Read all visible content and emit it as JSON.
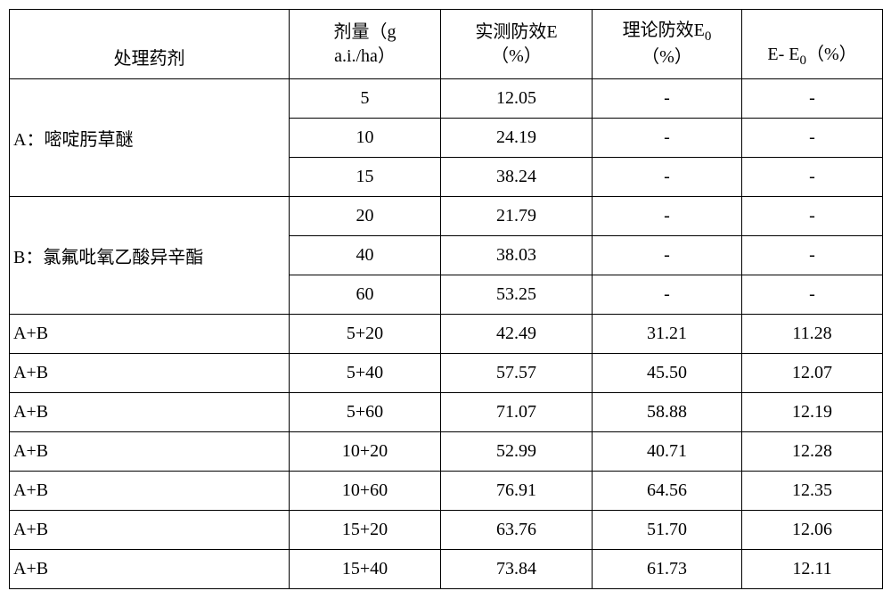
{
  "headers": {
    "agent": "处理药剂",
    "dose_l1": "剂量（g",
    "dose_l2": "a.i./ha）",
    "e_l1": "实测防效E",
    "e_l2": "（%）",
    "e0_l1": "理论防效E",
    "e0_sub": "0",
    "e0_l2": "（%）",
    "diff_pre": "E- E",
    "diff_sub": "0",
    "diff_post": "（%）"
  },
  "agents": {
    "A": "A：嘧啶肟草醚",
    "B": "B：氯氟吡氧乙酸异辛酯"
  },
  "rows": {
    "a1": {
      "dose": "5",
      "e": "12.05",
      "e0": "-",
      "d": "-"
    },
    "a2": {
      "dose": "10",
      "e": "24.19",
      "e0": "-",
      "d": "-"
    },
    "a3": {
      "dose": "15",
      "e": "38.24",
      "e0": "-",
      "d": "-"
    },
    "b1": {
      "dose": "20",
      "e": "21.79",
      "e0": "-",
      "d": "-"
    },
    "b2": {
      "dose": "40",
      "e": "38.03",
      "e0": "-",
      "d": "-"
    },
    "b3": {
      "dose": "60",
      "e": "53.25",
      "e0": "-",
      "d": "-"
    },
    "ab1": {
      "agent": "A+B",
      "dose": "5+20",
      "e": "42.49",
      "e0": "31.21",
      "d": "11.28"
    },
    "ab2": {
      "agent": "A+B",
      "dose": "5+40",
      "e": "57.57",
      "e0": "45.50",
      "d": "12.07"
    },
    "ab3": {
      "agent": "A+B",
      "dose": "5+60",
      "e": "71.07",
      "e0": "58.88",
      "d": "12.19"
    },
    "ab4": {
      "agent": "A+B",
      "dose": "10+20",
      "e": "52.99",
      "e0": "40.71",
      "d": "12.28"
    },
    "ab5": {
      "agent": "A+B",
      "dose": "10+60",
      "e": "76.91",
      "e0": "64.56",
      "d": "12.35"
    },
    "ab6": {
      "agent": "A+B",
      "dose": "15+20",
      "e": "63.76",
      "e0": "51.70",
      "d": "12.06"
    },
    "ab7": {
      "agent": "A+B",
      "dose": "15+40",
      "e": "73.84",
      "e0": "61.73",
      "d": "12.11"
    }
  }
}
